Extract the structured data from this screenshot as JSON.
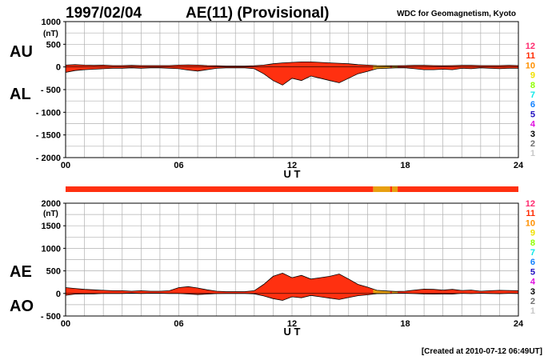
{
  "header": {
    "date": "1997/02/04",
    "title": "AE(11) (Provisional)",
    "source": "WDC for Geomagnetism, Kyoto"
  },
  "footer": {
    "created": "[Created at 2010-07-12 06:49UT]"
  },
  "colors": {
    "fill": "#ff3010",
    "fill_low_stations": "#e8a010",
    "grid": "#b0b0b0",
    "outline": "#000000"
  },
  "station_legend": [
    {
      "count": "12",
      "color": "#ff2a6e"
    },
    {
      "count": "11",
      "color": "#ff2a00"
    },
    {
      "count": "10",
      "color": "#ff9000"
    },
    {
      "count": "9",
      "color": "#f0e000"
    },
    {
      "count": "8",
      "color": "#90ff00"
    },
    {
      "count": "7",
      "color": "#10e8e8"
    },
    {
      "count": "6",
      "color": "#1080ff"
    },
    {
      "count": "5",
      "color": "#2010c0"
    },
    {
      "count": "4",
      "color": "#e010e0"
    },
    {
      "count": "3",
      "color": "#000000"
    },
    {
      "count": "2",
      "color": "#707070"
    },
    {
      "count": "1",
      "color": "#c8c8c8"
    }
  ],
  "chart_data": [
    {
      "type": "area",
      "panel": "AU/AL",
      "labels": {
        "upper": "AU",
        "lower": "AL",
        "unit": "(nT)"
      },
      "xlabel": "U T",
      "xlim": [
        0,
        24
      ],
      "xticks": [
        0,
        6,
        12,
        18,
        24
      ],
      "xtick_labels": [
        "00",
        "06",
        "12",
        "18",
        "24"
      ],
      "ylim": [
        -2000,
        1000
      ],
      "yticks": [
        1000,
        500,
        0,
        -500,
        -1000,
        -1500,
        -2000
      ],
      "ytick_labels": [
        "1000",
        "500",
        "0",
        "- 500",
        "- 1000",
        "- 1500",
        "- 2000"
      ],
      "grid": true,
      "low_station_ranges": [
        [
          16.3,
          17.2
        ],
        [
          17.3,
          17.6
        ]
      ],
      "series": [
        {
          "name": "AU",
          "x": [
            0,
            0.5,
            1,
            1.5,
            2,
            2.5,
            3,
            3.5,
            4,
            4.5,
            5,
            5.5,
            6,
            6.5,
            7,
            7.5,
            8,
            8.5,
            9,
            9.5,
            10,
            10.5,
            11,
            11.5,
            12,
            12.5,
            13,
            13.5,
            14,
            14.5,
            15,
            15.5,
            16,
            16.5,
            17,
            17.5,
            18,
            18.5,
            19,
            19.5,
            20,
            20.5,
            21,
            21.5,
            22,
            22.5,
            23,
            23.5,
            24
          ],
          "values": [
            40,
            50,
            40,
            35,
            40,
            30,
            30,
            35,
            30,
            30,
            30,
            30,
            40,
            45,
            40,
            30,
            25,
            20,
            20,
            20,
            25,
            40,
            70,
            90,
            100,
            110,
            110,
            100,
            90,
            80,
            70,
            50,
            40,
            30,
            25,
            25,
            30,
            35,
            35,
            30,
            25,
            30,
            35,
            35,
            30,
            30,
            30,
            35,
            30
          ]
        },
        {
          "name": "AL",
          "x": [
            0,
            0.5,
            1,
            1.5,
            2,
            2.5,
            3,
            3.5,
            4,
            4.5,
            5,
            5.5,
            6,
            6.5,
            7,
            7.5,
            8,
            8.5,
            9,
            9.5,
            10,
            10.5,
            11,
            11.5,
            12,
            12.5,
            13,
            13.5,
            14,
            14.5,
            15,
            15.5,
            16,
            16.5,
            17,
            17.5,
            18,
            18.5,
            19,
            19.5,
            20,
            20.5,
            21,
            21.5,
            22,
            22.5,
            23,
            23.5,
            24
          ],
          "values": [
            -120,
            -80,
            -60,
            -50,
            -40,
            -30,
            -30,
            -20,
            -30,
            -20,
            -20,
            -30,
            -40,
            -70,
            -90,
            -60,
            -30,
            -20,
            -20,
            -20,
            -40,
            -150,
            -300,
            -400,
            -250,
            -300,
            -200,
            -250,
            -300,
            -350,
            -250,
            -150,
            -100,
            -40,
            -30,
            -20,
            -20,
            -40,
            -60,
            -60,
            -50,
            -60,
            -30,
            -40,
            -20,
            -30,
            -40,
            -30,
            -30
          ]
        }
      ]
    },
    {
      "type": "area",
      "panel": "AE/AO",
      "labels": {
        "upper": "AE",
        "lower": "AO",
        "unit": "(nT)"
      },
      "xlabel": "U T",
      "xlim": [
        0,
        24
      ],
      "xticks": [
        0,
        6,
        12,
        18,
        24
      ],
      "xtick_labels": [
        "00",
        "06",
        "12",
        "18",
        "24"
      ],
      "ylim": [
        -500,
        2000
      ],
      "yticks": [
        2000,
        1500,
        1000,
        500,
        0,
        -500
      ],
      "ytick_labels": [
        "2000",
        "1500",
        "1000",
        "500",
        "0",
        "- 500"
      ],
      "grid": true,
      "low_station_ranges": [
        [
          16.3,
          17.2
        ],
        [
          17.3,
          17.6
        ]
      ],
      "series": [
        {
          "name": "AE",
          "x": [
            0,
            0.5,
            1,
            1.5,
            2,
            2.5,
            3,
            3.5,
            4,
            4.5,
            5,
            5.5,
            6,
            6.5,
            7,
            7.5,
            8,
            8.5,
            9,
            9.5,
            10,
            10.5,
            11,
            11.5,
            12,
            12.5,
            13,
            13.5,
            14,
            14.5,
            15,
            15.5,
            16,
            16.5,
            17,
            17.5,
            18,
            18.5,
            19,
            19.5,
            20,
            20.5,
            21,
            21.5,
            22,
            22.5,
            23,
            23.5,
            24
          ],
          "values": [
            130,
            110,
            90,
            80,
            70,
            60,
            60,
            50,
            60,
            50,
            50,
            60,
            130,
            150,
            120,
            80,
            50,
            40,
            40,
            40,
            60,
            200,
            380,
            450,
            350,
            400,
            320,
            350,
            380,
            430,
            320,
            200,
            140,
            70,
            55,
            45,
            50,
            75,
            95,
            90,
            75,
            90,
            65,
            75,
            50,
            60,
            70,
            65,
            60
          ]
        },
        {
          "name": "AO",
          "x": [
            0,
            0.5,
            1,
            1.5,
            2,
            2.5,
            3,
            3.5,
            4,
            4.5,
            5,
            5.5,
            6,
            6.5,
            7,
            7.5,
            8,
            8.5,
            9,
            9.5,
            10,
            10.5,
            11,
            11.5,
            12,
            12.5,
            13,
            13.5,
            14,
            14.5,
            15,
            15.5,
            16,
            16.5,
            17,
            17.5,
            18,
            18.5,
            19,
            19.5,
            20,
            20.5,
            21,
            21.5,
            22,
            22.5,
            23,
            23.5,
            24
          ],
          "values": [
            -40,
            -15,
            -10,
            -8,
            0,
            0,
            0,
            8,
            0,
            5,
            5,
            0,
            0,
            -12,
            -25,
            -15,
            -3,
            0,
            0,
            0,
            -8,
            -55,
            -115,
            -155,
            -75,
            -95,
            -45,
            -75,
            -105,
            -135,
            -90,
            -50,
            -30,
            -5,
            -3,
            3,
            5,
            -3,
            -13,
            -15,
            -13,
            -15,
            3,
            -3,
            5,
            0,
            -5,
            3,
            0
          ]
        }
      ]
    }
  ],
  "station_bar": {
    "segments": [
      {
        "from": 0,
        "to": 16.3,
        "stations": 11
      },
      {
        "from": 16.3,
        "to": 17.2,
        "stations": 10
      },
      {
        "from": 17.2,
        "to": 17.3,
        "stations": 11
      },
      {
        "from": 17.3,
        "to": 17.6,
        "stations": 10
      },
      {
        "from": 17.6,
        "to": 24,
        "stations": 11
      }
    ]
  }
}
